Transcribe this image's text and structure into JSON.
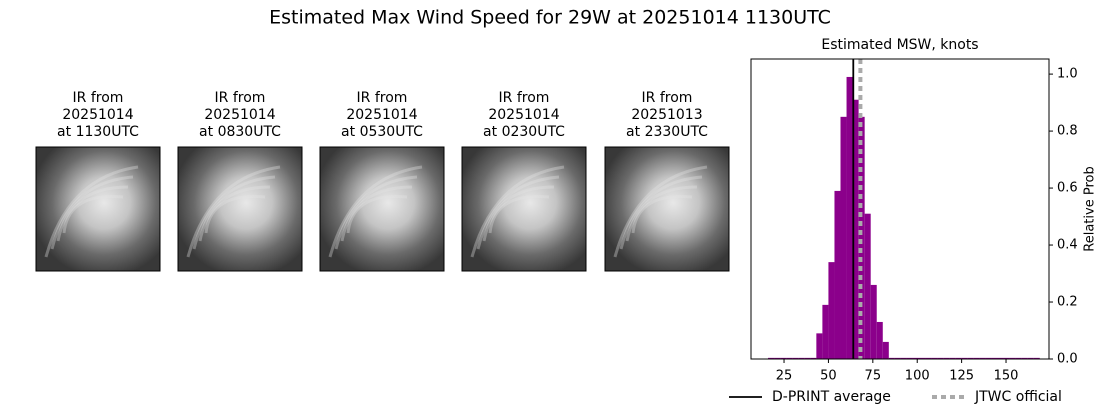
{
  "title": "Estimated Max Wind Speed for 29W at 20251014 1130UTC",
  "images": [
    {
      "label": [
        "IR from",
        "20251014",
        "at 1130UTC"
      ]
    },
    {
      "label": [
        "IR from",
        "20251014",
        "at 0830UTC"
      ]
    },
    {
      "label": [
        "IR from",
        "20251014",
        "at 0530UTC"
      ]
    },
    {
      "label": [
        "IR from",
        "20251014",
        "at 0230UTC"
      ]
    },
    {
      "label": [
        "IR from",
        "20251013",
        "at 2330UTC"
      ]
    }
  ],
  "chart_data": {
    "type": "histogram",
    "title": "Estimated MSW, knots",
    "y_label": "Relative Prob",
    "color": "#8b008b",
    "bins": [
      16,
      19.4,
      22.8,
      26.2,
      29.6,
      33,
      36.4,
      39.8,
      43.2,
      46.6,
      50,
      53.4,
      56.8,
      60.2,
      63.6,
      67,
      70.4,
      73.8,
      77.2,
      80.6,
      84,
      87.4,
      90.8,
      94.2,
      97.6,
      101,
      104.4,
      107.8,
      111.2,
      114.6,
      118,
      121.4,
      124.8,
      128.2,
      131.6,
      135,
      138.4,
      141.8,
      145.2,
      148.6,
      152,
      155.4,
      158.8,
      162.2,
      165.6,
      169
    ],
    "values": [
      0.004,
      0.004,
      0.004,
      0.004,
      0.004,
      0.004,
      0.004,
      0.004,
      0.09,
      0.19,
      0.34,
      0.59,
      0.85,
      0.99,
      0.91,
      0.85,
      0.51,
      0.26,
      0.13,
      0.06,
      0.004,
      0.004,
      0.004,
      0.004,
      0.004,
      0.004,
      0.004,
      0.004,
      0.004,
      0.004,
      0.004,
      0.004,
      0.004,
      0.004,
      0.004,
      0.004,
      0.004,
      0.004,
      0.004,
      0.004,
      0.004,
      0.004,
      0.004,
      0.004,
      0.004
    ],
    "lines": [
      {
        "name": "D-PRINT average",
        "value": 64,
        "color": "#000000",
        "style": "solid"
      },
      {
        "name": "JTWC official",
        "value": 68,
        "color": "#aaaaaa",
        "style": "dotted"
      }
    ],
    "xlim": [
      6.4,
      174.2
    ],
    "xticks": [
      25,
      50,
      75,
      100,
      125,
      150
    ],
    "ylim": [
      0,
      1.053
    ],
    "yticks": [
      {
        "value": 0,
        "label": "0.0"
      },
      {
        "value": 0.2,
        "label": "0.2"
      },
      {
        "value": 0.4,
        "label": "0.4"
      },
      {
        "value": 0.6,
        "label": "0.6"
      },
      {
        "value": 0.8,
        "label": "0.8"
      },
      {
        "value": 1.0,
        "label": "1.0"
      }
    ]
  }
}
